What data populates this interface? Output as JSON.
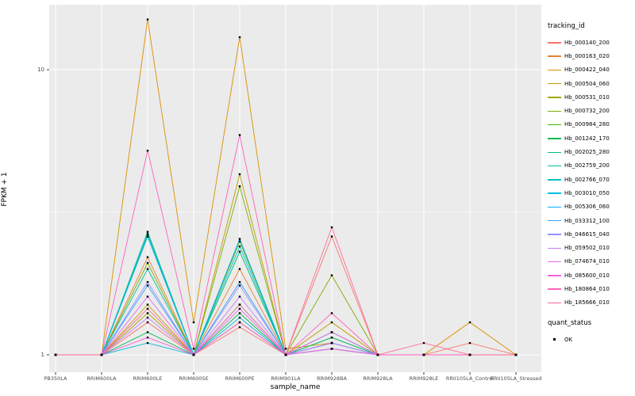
{
  "chart": {
    "ylabel": "FPKM + 1",
    "xlabel": "sample_name",
    "y_ticks": [
      {
        "label": "10",
        "value": 10
      },
      {
        "label": "1",
        "value": 1
      }
    ],
    "legend": {
      "color_title": "tracking_id",
      "shape_title": "quant_status",
      "shape_items": [
        "OK"
      ]
    },
    "colors": {
      "panel_bg": "#EBEBEB",
      "grid_major": "#FFFFFF",
      "grid_minor": "#FFFFFF",
      "point": "#000000",
      "tick_text": "#4D4D4D",
      "tick_mark": "#333333"
    }
  },
  "chart_data": {
    "type": "line",
    "title": "",
    "xlabel": "sample_name",
    "ylabel": "FPKM + 1",
    "yscale": "log10",
    "ylim": [
      0.87,
      17
    ],
    "grid": true,
    "legend_position": "right",
    "point_shape": "square",
    "quant_status": "OK",
    "categories": [
      "PB350LA",
      "RRIM600LA",
      "RRIM600LE",
      "RRIM600SE",
      "RRIM600PE",
      "RRIM901LA",
      "RRIM928BA",
      "RRIM928LA",
      "RRIM928LE",
      "RRII105LA_Control",
      "RRII105LA_Stressed"
    ],
    "series": [
      {
        "name": "Hb_000140_200",
        "color": "#F8766D",
        "values": [
          1,
          1,
          1.3,
          1,
          1.25,
          1,
          2.6,
          1,
          1,
          1.1,
          1
        ]
      },
      {
        "name": "Hb_000163_020",
        "color": "#EA8331",
        "values": [
          1,
          1,
          2.2,
          1,
          2.0,
          1,
          1.2,
          1,
          1,
          1,
          1
        ]
      },
      {
        "name": "Hb_000422_040",
        "color": "#D89000",
        "values": [
          1,
          1,
          15.0,
          1.3,
          13.0,
          1.05,
          1.1,
          1,
          1,
          1.3,
          1
        ]
      },
      {
        "name": "Hb_000504_060",
        "color": "#C09B00",
        "values": [
          1,
          1,
          1.5,
          1,
          4.3,
          1,
          1.3,
          1,
          1,
          1,
          1
        ]
      },
      {
        "name": "Hb_000531_010",
        "color": "#A3A500",
        "values": [
          1,
          1,
          1.4,
          1,
          1.3,
          1,
          1.15,
          1,
          1,
          1,
          1
        ]
      },
      {
        "name": "Hb_000732_200",
        "color": "#7CAE00",
        "values": [
          1,
          1,
          2.1,
          1,
          3.9,
          1,
          1.9,
          1,
          1,
          1,
          1
        ]
      },
      {
        "name": "Hb_000984_280",
        "color": "#39B600",
        "values": [
          1,
          1,
          2.6,
          1,
          2.5,
          1,
          1.1,
          1,
          1,
          1,
          1
        ]
      },
      {
        "name": "Hb_001242_170",
        "color": "#00BB4E",
        "values": [
          1,
          1,
          1.2,
          1,
          1.4,
          1,
          1.05,
          1,
          1,
          1,
          1
        ]
      },
      {
        "name": "Hb_002025_280",
        "color": "#00BF7D",
        "values": [
          1,
          1,
          2.7,
          1,
          2.3,
          1,
          1.15,
          1,
          1,
          1,
          1
        ]
      },
      {
        "name": "Hb_002759_200",
        "color": "#00C1A3",
        "values": [
          1,
          1,
          2.0,
          1,
          1.5,
          1,
          1.1,
          1,
          1,
          1,
          1
        ]
      },
      {
        "name": "Hb_002766_070",
        "color": "#00BFC4",
        "values": [
          1,
          1,
          2.65,
          1,
          2.4,
          1,
          1.2,
          1,
          1,
          1,
          1
        ]
      },
      {
        "name": "Hb_003010_050",
        "color": "#00BAE0",
        "values": [
          1,
          1,
          1.1,
          1,
          1.35,
          1,
          1.05,
          1,
          1,
          1,
          1
        ]
      },
      {
        "name": "Hb_005306_060",
        "color": "#00B0F6",
        "values": [
          1,
          1,
          2.6,
          1,
          2.55,
          1,
          1.1,
          1,
          1,
          1,
          1
        ]
      },
      {
        "name": "Hb_033312_100",
        "color": "#35A2FF",
        "values": [
          1,
          1,
          1.75,
          1,
          1.8,
          1,
          1.1,
          1,
          1,
          1,
          1
        ]
      },
      {
        "name": "Hb_046615_040",
        "color": "#9590FF",
        "values": [
          1,
          1,
          1.8,
          1,
          1.75,
          1,
          1.05,
          1,
          1,
          1,
          1
        ]
      },
      {
        "name": "Hb_059502_010",
        "color": "#C77CFF",
        "values": [
          1,
          1,
          1.35,
          1,
          1.6,
          1,
          1.1,
          1,
          1,
          1,
          1
        ]
      },
      {
        "name": "Hb_074674_010",
        "color": "#E76BF3",
        "values": [
          1,
          1,
          1.6,
          1,
          1.45,
          1,
          1.2,
          1,
          1,
          1,
          1
        ]
      },
      {
        "name": "Hb_085600_010",
        "color": "#FA62DB",
        "values": [
          1,
          1,
          1.15,
          1,
          1.3,
          1,
          1.05,
          1,
          1,
          1,
          1
        ]
      },
      {
        "name": "Hb_180864_010",
        "color": "#FF62BC",
        "values": [
          1,
          1,
          5.2,
          1.05,
          5.9,
          1,
          1.4,
          1,
          1,
          1,
          1
        ]
      },
      {
        "name": "Hb_185666_010",
        "color": "#FF6A98",
        "values": [
          1,
          1,
          1.45,
          1,
          1.5,
          1,
          2.8,
          1,
          1.1,
          1,
          1
        ]
      }
    ]
  }
}
